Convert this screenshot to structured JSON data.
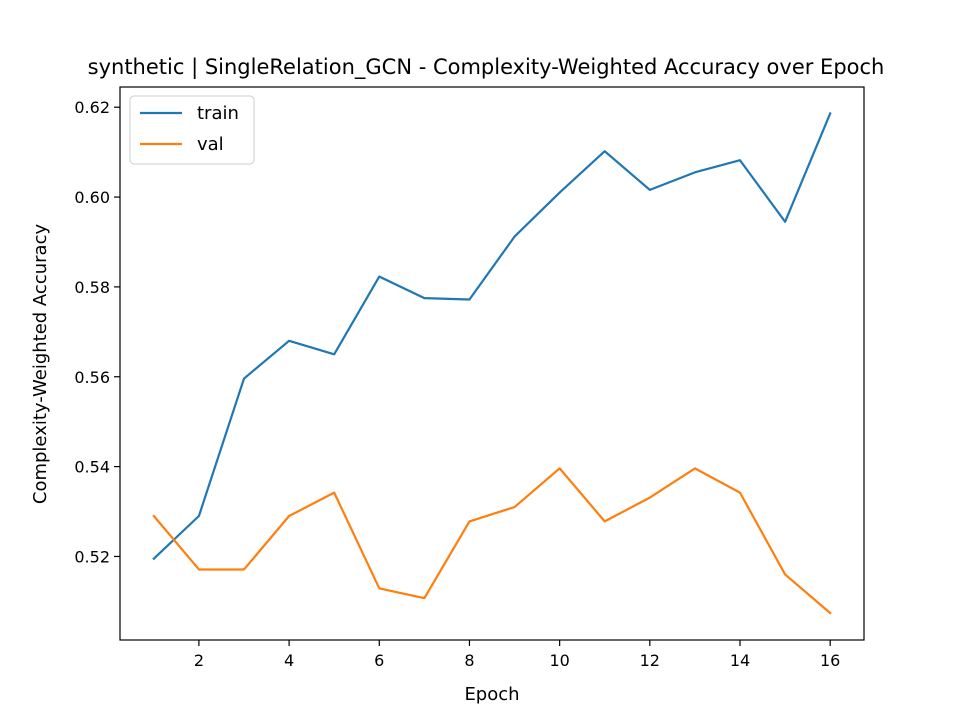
{
  "chart_data": {
    "type": "line",
    "title": "synthetic | SingleRelation_GCN - Complexity-Weighted Accuracy over Epoch",
    "xlabel": "Epoch",
    "ylabel": "Complexity-Weighted Accuracy",
    "x": [
      1,
      2,
      3,
      4,
      5,
      6,
      7,
      8,
      9,
      10,
      11,
      12,
      13,
      14,
      15,
      16
    ],
    "xlim": [
      0.25,
      16.75
    ],
    "ylim": [
      0.5014,
      0.6245
    ],
    "xticks": [
      2,
      4,
      6,
      8,
      10,
      12,
      14,
      16
    ],
    "xtick_labels": [
      "2",
      "4",
      "6",
      "8",
      "10",
      "12",
      "14",
      "16"
    ],
    "yticks": [
      0.52,
      0.54,
      0.56,
      0.58,
      0.6,
      0.62
    ],
    "ytick_labels": [
      "0.52",
      "0.54",
      "0.56",
      "0.58",
      "0.60",
      "0.62"
    ],
    "grid": false,
    "legend_position": "top-left",
    "series": [
      {
        "name": "train",
        "color": "#1f77b4",
        "values": [
          0.5195,
          0.529,
          0.5596,
          0.568,
          0.565,
          0.5823,
          0.5775,
          0.5772,
          0.5912,
          0.601,
          0.6102,
          0.6016,
          0.6055,
          0.6082,
          0.5945,
          0.6186
        ]
      },
      {
        "name": "val",
        "color": "#ff7f0e",
        "values": [
          0.529,
          0.5171,
          0.5171,
          0.529,
          0.5342,
          0.5129,
          0.5107,
          0.5278,
          0.531,
          0.5396,
          0.5278,
          0.5331,
          0.5396,
          0.5342,
          0.516,
          0.5074
        ]
      }
    ]
  }
}
